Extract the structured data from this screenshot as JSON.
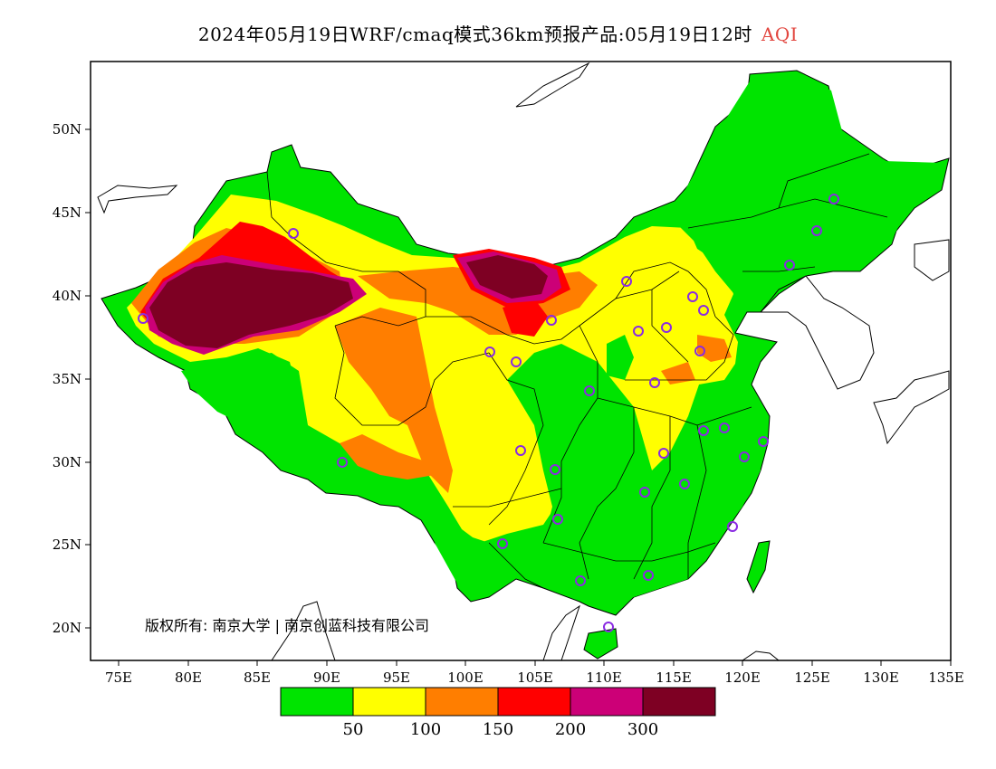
{
  "header": {
    "title": "2024年05月19日WRF/cmaq模式36km预报产品:05月19日12时",
    "variable": "AQI"
  },
  "map": {
    "x_ticks": [
      "75E",
      "80E",
      "85E",
      "90E",
      "95E",
      "100E",
      "105E",
      "110E",
      "115E",
      "120E",
      "125E",
      "130E",
      "135E"
    ],
    "y_ticks": [
      "50N",
      "45N",
      "40N",
      "35N",
      "30N",
      "25N",
      "20N"
    ],
    "copyright": "版权所有: 南京大学 | 南京创蓝科技有限公司",
    "colors": {
      "green": "#00e400",
      "yellow": "#ffff00",
      "orange": "#ff7e00",
      "red": "#ff0000",
      "purple": "#cc0077",
      "maroon": "#7e0023",
      "station": "#8a2be2"
    }
  },
  "legend": {
    "colors": [
      "#00e400",
      "#ffff00",
      "#ff7e00",
      "#ff0000",
      "#cc0077",
      "#7e0023"
    ],
    "labels": [
      "50",
      "100",
      "150",
      "200",
      "300"
    ]
  }
}
